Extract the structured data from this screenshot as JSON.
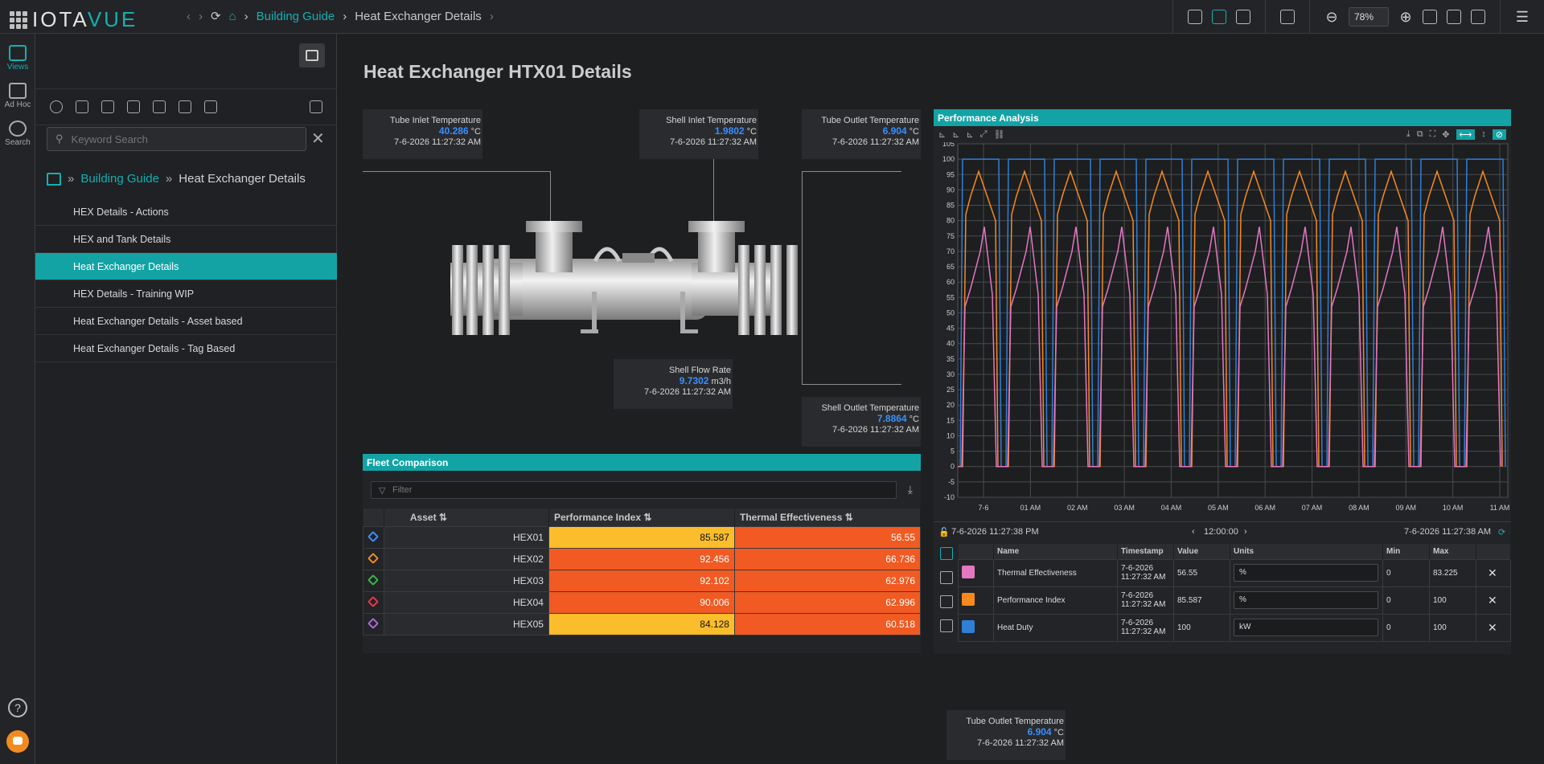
{
  "app": {
    "brand_a": "IOTA",
    "brand_b": "VUE"
  },
  "topbar": {
    "breadcrumb": {
      "root": "Building Guide",
      "current": "Heat Exchanger Details"
    },
    "zoom": "78%"
  },
  "rail": {
    "views": "Views",
    "adhoc": "Ad Hoc",
    "search": "Search",
    "help": "?"
  },
  "sidebar": {
    "search_placeholder": "Keyword Search",
    "breadcrumb": {
      "root": "Building Guide",
      "current": "Heat Exchanger Details"
    },
    "items": [
      {
        "label": "HEX Details - Actions"
      },
      {
        "label": "HEX and Tank Details"
      },
      {
        "label": "Heat Exchanger Details",
        "selected": true
      },
      {
        "label": "HEX Details - Training WIP"
      },
      {
        "label": "Heat Exchanger Details - Asset based"
      },
      {
        "label": "Heat Exchanger Details - Tag Based"
      }
    ]
  },
  "page": {
    "title": "Heat Exchanger HTX01 Details"
  },
  "callouts": {
    "tube_inlet": {
      "title": "Tube Inlet Temperature",
      "value": "40.286",
      "unit": "°C",
      "time": "7-6-2026 11:27:32 AM"
    },
    "shell_inlet": {
      "title": "Shell Inlet Temperature",
      "value": "1.9802",
      "unit": "°C",
      "time": "7-6-2026 11:27:32 AM"
    },
    "tube_outlet": {
      "title": "Tube Outlet Temperature",
      "value": "6.904",
      "unit": "°C",
      "time": "7-6-2026 11:27:32 AM"
    },
    "shell_flow": {
      "title": "Shell Flow Rate",
      "value": "9.7302",
      "unit": "m3/h",
      "time": "7-6-2026 11:27:32 AM"
    },
    "shell_outlet": {
      "title": "Shell Outlet Temperature",
      "value": "7.8864",
      "unit": "°C",
      "time": "7-6-2026 11:27:32 AM"
    },
    "tube_outlet_2": {
      "title": "Tube Outlet Temperature",
      "value": "6.904",
      "unit": "°C",
      "time": "7-6-2026 11:27:32 AM"
    }
  },
  "fleet": {
    "title": "Fleet Comparison",
    "filter_placeholder": "Filter",
    "columns": [
      "Asset",
      "Performance Index",
      "Thermal Effectiveness"
    ],
    "rows": [
      {
        "asset": "HEX01",
        "perf": "85.587",
        "therm": "56.55",
        "icon_color": "#3a8fff",
        "perf_color": "#fbbd2b"
      },
      {
        "asset": "HEX02",
        "perf": "92.456",
        "therm": "66.736",
        "icon_color": "#f08a24",
        "perf_color": "#f15a22"
      },
      {
        "asset": "HEX03",
        "perf": "92.102",
        "therm": "62.976",
        "icon_color": "#3cb44b",
        "perf_color": "#f15a22"
      },
      {
        "asset": "HEX04",
        "perf": "90.006",
        "therm": "62.996",
        "icon_color": "#e6394a",
        "perf_color": "#f15a22"
      },
      {
        "asset": "HEX05",
        "perf": "84.128",
        "therm": "60.518",
        "icon_color": "#a86bd8",
        "perf_color": "#fbbd2b"
      }
    ],
    "therm_color": "#f15a22"
  },
  "perf": {
    "title": "Performance Analysis",
    "start_time": "7-6-2026 11:27:38 PM",
    "interval": "12:00:00",
    "end_time": "7-6-2026 11:27:38 AM",
    "legend_columns": [
      "Name",
      "Timestamp",
      "Value",
      "Units",
      "Min",
      "Max"
    ],
    "legend_rows": [
      {
        "name": "Thermal Effectiveness",
        "timestamp": "7-6-2026 11:27:32 AM",
        "value": "56.55",
        "units": "%",
        "min": "0",
        "max": "83.225",
        "color": "#e377c2"
      },
      {
        "name": "Performance Index",
        "timestamp": "7-6-2026 11:27:32 AM",
        "value": "85.587",
        "units": "%",
        "min": "0",
        "max": "100",
        "color": "#f6891f"
      },
      {
        "name": "Heat Duty",
        "timestamp": "7-6-2026 11:27:32 AM",
        "value": "100",
        "units": "kW",
        "min": "0",
        "max": "100",
        "color": "#2f7fd6"
      }
    ]
  },
  "chart_data": {
    "type": "line",
    "x_ticks": [
      "7-6",
      "01 AM",
      "02 AM",
      "03 AM",
      "04 AM",
      "05 AM",
      "06 AM",
      "07 AM",
      "08 AM",
      "09 AM",
      "10 AM",
      "11 AM"
    ],
    "ylim": [
      -10,
      105
    ],
    "y_ticks": [
      -10,
      -5,
      0,
      5,
      10,
      15,
      20,
      25,
      30,
      35,
      40,
      45,
      50,
      55,
      60,
      65,
      70,
      75,
      80,
      85,
      90,
      95,
      100,
      105
    ],
    "grid": true,
    "series": [
      {
        "name": "Heat Duty",
        "color": "#2f7fd6",
        "pattern": "square",
        "low": 0,
        "high": 100
      },
      {
        "name": "Performance Index",
        "color": "#f6891f",
        "pattern": "sawtooth",
        "low": 0,
        "high": 96
      },
      {
        "name": "Thermal Effectiveness",
        "color": "#e377c2",
        "pattern": "peak",
        "low": 0,
        "high": 78
      }
    ]
  }
}
